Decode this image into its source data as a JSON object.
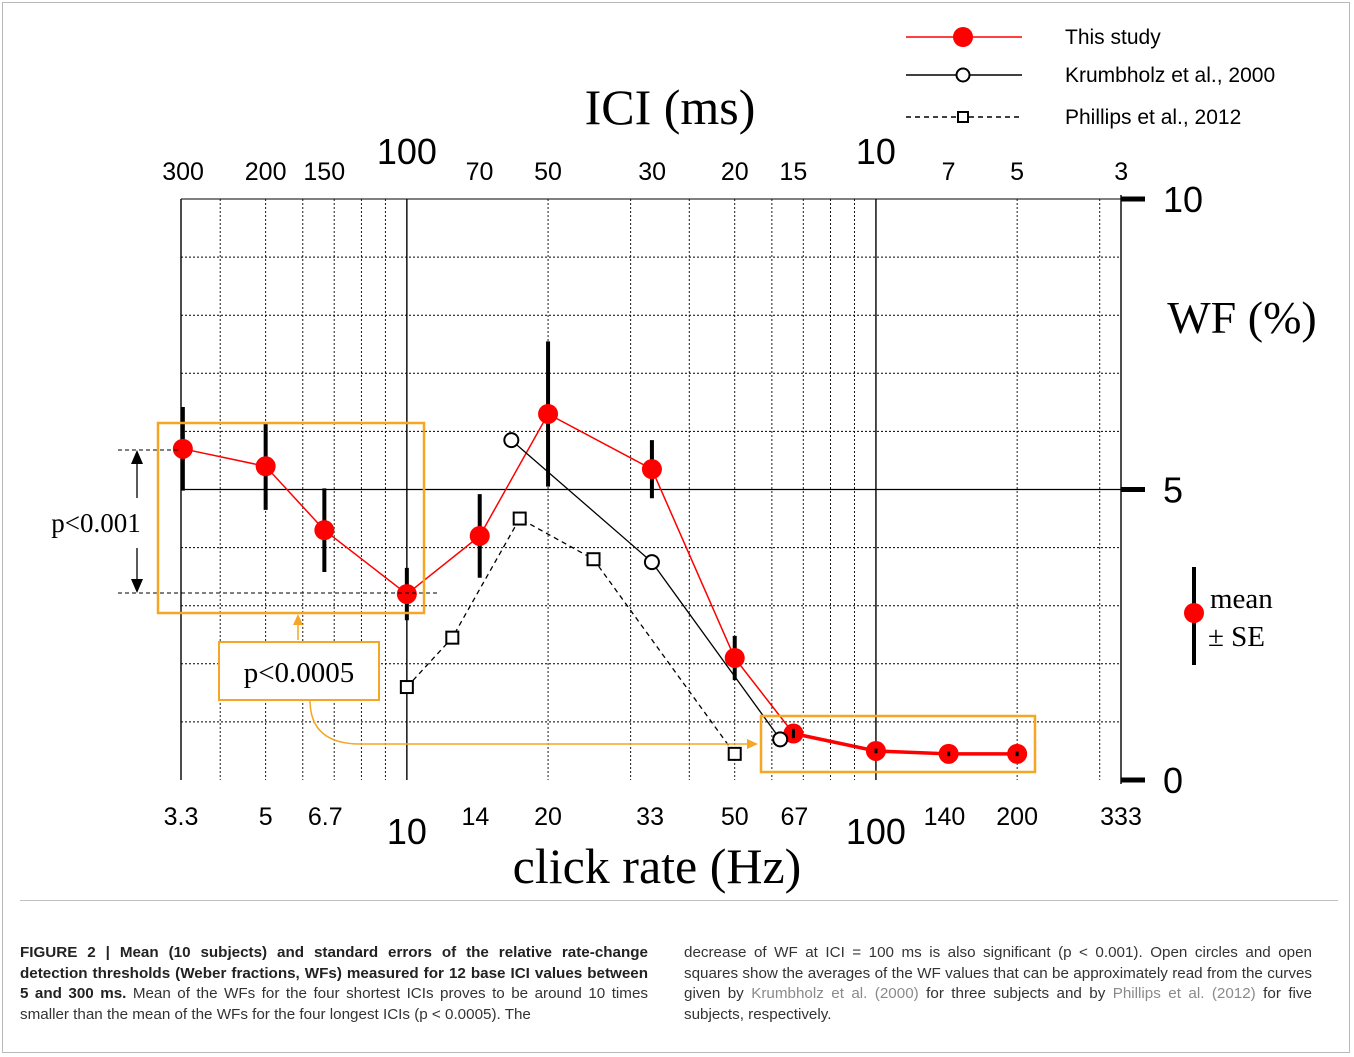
{
  "chart_data": {
    "type": "line",
    "top_axis": {
      "title": "ICI (ms)",
      "tick_labels": [
        "300",
        "200",
        "150",
        "100",
        "70",
        "50",
        "30",
        "20",
        "15",
        "10",
        "7",
        "5",
        "3"
      ]
    },
    "bottom_axis": {
      "title": "click rate (Hz)",
      "scale": "log",
      "tick_labels": [
        "3.3",
        "5",
        "6.7",
        "10",
        "14",
        "20",
        "33",
        "50",
        "67",
        "100",
        "140",
        "200",
        "333"
      ],
      "tick_values": [
        3.3,
        5,
        6.7,
        10,
        14,
        20,
        33,
        50,
        67,
        100,
        140,
        200,
        333
      ],
      "xlim": [
        3.3,
        333
      ]
    },
    "right_axis": {
      "title": "WF (%)",
      "tick_labels": [
        "0",
        "5",
        "10"
      ],
      "tick_values": [
        0,
        5,
        10
      ],
      "ylim": [
        0,
        10
      ]
    },
    "grid": true,
    "legend_position": "top-right",
    "series": [
      {
        "name": "This study",
        "color": "#ff0000",
        "marker": "filled-circle",
        "points": [
          {
            "x": 3.33,
            "y": 5.7,
            "se": 0.72
          },
          {
            "x": 5,
            "y": 5.4,
            "se": 0.75
          },
          {
            "x": 6.67,
            "y": 4.3,
            "se": 0.72
          },
          {
            "x": 10,
            "y": 3.2,
            "se": 0.45
          },
          {
            "x": 14.3,
            "y": 4.2,
            "se": 0.72
          },
          {
            "x": 20,
            "y": 6.3,
            "se": 1.25
          },
          {
            "x": 33.3,
            "y": 5.35,
            "se": 0.5
          },
          {
            "x": 50,
            "y": 2.1,
            "se": 0.38
          },
          {
            "x": 66.7,
            "y": 0.8,
            "se": 0.08
          },
          {
            "x": 100,
            "y": 0.5,
            "se": 0.04
          },
          {
            "x": 142.9,
            "y": 0.45,
            "se": 0.04
          },
          {
            "x": 200,
            "y": 0.45,
            "se": 0.04
          }
        ]
      },
      {
        "name": "Krumbholz et al., 2000",
        "color": "#000000",
        "marker": "open-circle",
        "dash": false,
        "points": [
          {
            "x": 16.7,
            "y": 5.85
          },
          {
            "x": 33.3,
            "y": 3.75
          },
          {
            "x": 62.5,
            "y": 0.7
          }
        ]
      },
      {
        "name": "Phillips et al., 2012",
        "color": "#000000",
        "marker": "open-square",
        "dash": true,
        "points": [
          {
            "x": 10,
            "y": 1.6
          },
          {
            "x": 12.5,
            "y": 2.45
          },
          {
            "x": 17.4,
            "y": 4.5
          },
          {
            "x": 25,
            "y": 3.8
          },
          {
            "x": 50,
            "y": 0.45
          }
        ]
      }
    ],
    "error_legend": {
      "line1": "mean",
      "line2": "± SE"
    },
    "annotations": [
      {
        "text": "p<0.001",
        "from_y": 5.7,
        "to_y": 3.2
      },
      {
        "text": "p<0.0005",
        "highlight_color": "#f5a623"
      }
    ]
  },
  "caption": {
    "bold_text": "FIGURE 2 | Mean (10 subjects) and standard errors of the relative rate-change detection thresholds (Weber fractions, WFs) measured for 12 base ICI values between 5 and 300 ms.",
    "col1_text": " Mean of the WFs for the four shortest ICIs proves to be around 10 times smaller than the mean of the WFs for the four longest ICIs (p < 0.0005). The",
    "col2_text_1": "decrease of WF at ICI = 100 ms is also significant (p < 0.001). Open circles and open squares show the averages of the WF values that can be approximately read from the curves given by ",
    "col2_ref_1": "Krumbholz et al. (2000)",
    "col2_text_2": " for three subjects and by ",
    "col2_ref_2": "Phillips et al. (2012)",
    "col2_text_3": " for five subjects, respectively."
  }
}
